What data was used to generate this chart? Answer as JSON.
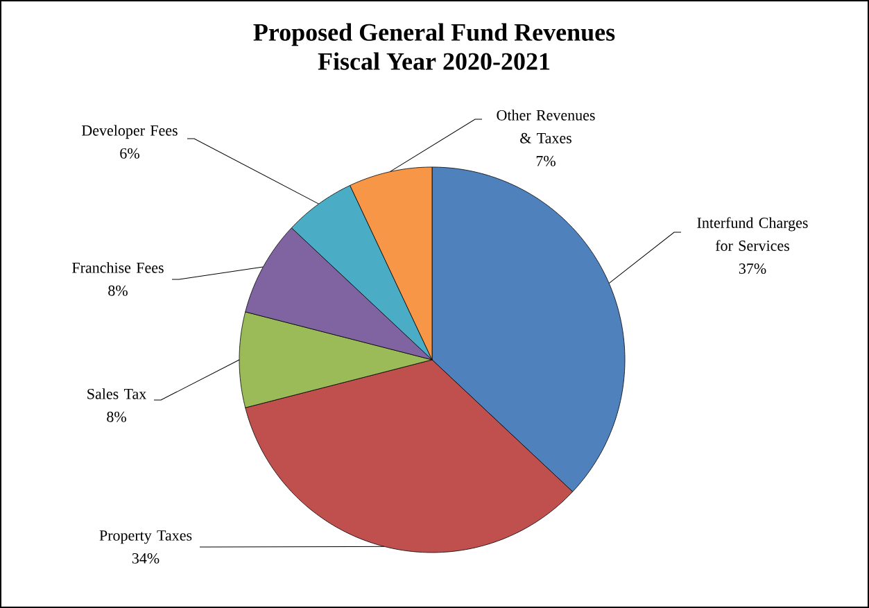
{
  "chart_data": {
    "type": "pie",
    "title": "Proposed General Fund Revenues",
    "subtitle": "Fiscal Year 2020-2021",
    "categories": [
      "Interfund Charges for Services",
      "Property Taxes",
      "Sales Tax",
      "Franchise Fees",
      "Developer Fees",
      "Other Revenues & Taxes"
    ],
    "values": [
      37,
      34,
      8,
      8,
      6,
      7
    ],
    "value_labels": [
      "37%",
      "34%",
      "8%",
      "8%",
      "6%",
      "7%"
    ],
    "colors": [
      "#4f81bd",
      "#c0504d",
      "#9bbb59",
      "#8064a2",
      "#4bacc6",
      "#f79646"
    ],
    "legend": false
  }
}
